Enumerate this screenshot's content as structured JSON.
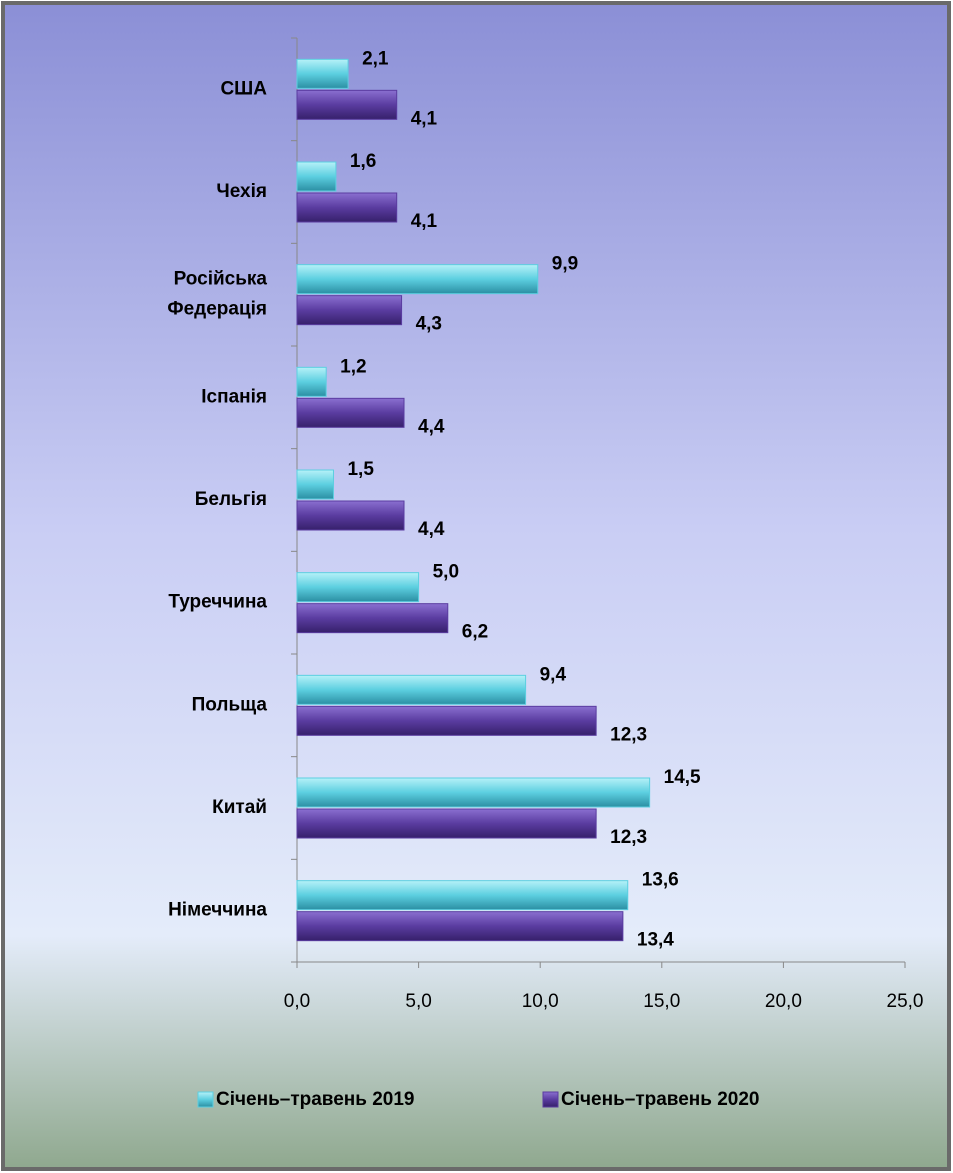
{
  "chart_data": {
    "type": "bar",
    "orientation": "horizontal",
    "categories": [
      "США",
      "Чехія",
      "Російська Федерація",
      "Іспанія",
      "Бельгія",
      "Туреччина",
      "Польща",
      "Китай",
      "Німеччина"
    ],
    "series": [
      {
        "name": "Січень–травень 2019",
        "color": "#5ccfe0",
        "values": [
          2.1,
          1.6,
          9.9,
          1.2,
          1.5,
          5.0,
          9.4,
          14.5,
          13.6
        ],
        "value_labels": [
          "2,1",
          "1,6",
          "9,9",
          "1,2",
          "1,5",
          "5,0",
          "9,4",
          "14,5",
          "13,6"
        ]
      },
      {
        "name": "Січень–травень 2020",
        "color": "#5a3ca0",
        "values": [
          4.1,
          4.1,
          4.3,
          4.4,
          4.4,
          6.2,
          12.3,
          12.3,
          13.4
        ],
        "value_labels": [
          "4,1",
          "4,1",
          "4,3",
          "4,4",
          "4,4",
          "6,2",
          "12,3",
          "12,3",
          "13,4"
        ]
      }
    ],
    "xlim": [
      0,
      25
    ],
    "xticks": [
      {
        "value": 0,
        "label": "0,0"
      },
      {
        "value": 5,
        "label": "5,0"
      },
      {
        "value": 10,
        "label": "10,0"
      },
      {
        "value": 15,
        "label": "15,0"
      },
      {
        "value": 20,
        "label": "20,0"
      },
      {
        "value": 25,
        "label": "25,0"
      }
    ],
    "legend": "bottom"
  }
}
